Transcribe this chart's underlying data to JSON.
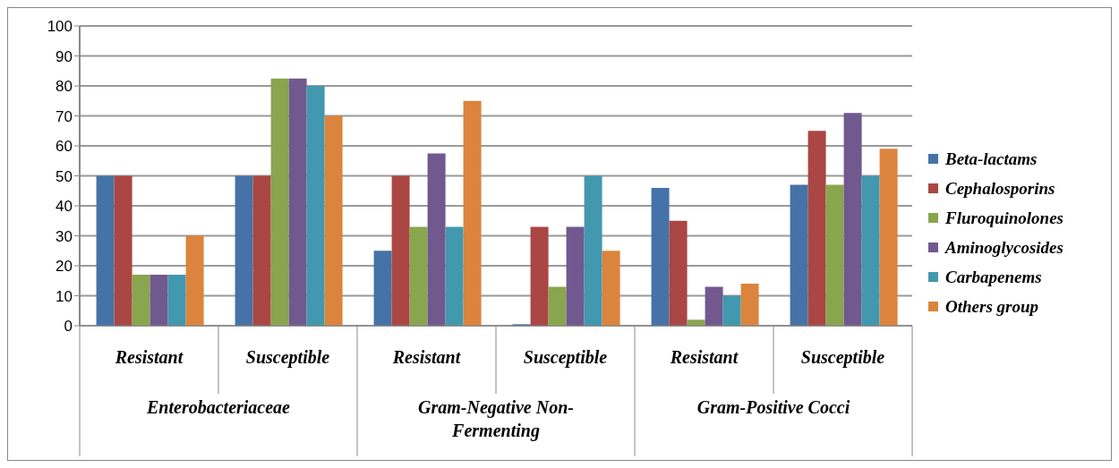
{
  "chart_data": {
    "type": "bar",
    "categories": [
      "Resistant",
      "Susceptible",
      "Resistant",
      "Susceptible",
      "Resistant",
      "Susceptible"
    ],
    "annotations": [
      "Enterobacteriaceae",
      "Gram-Negative Non-Fermenting",
      "Gram-Positive Cocci"
    ],
    "series": [
      {
        "name": "Beta-lactams",
        "color": "#4572a7",
        "values": [
          50,
          50,
          25,
          0.5,
          46,
          47
        ]
      },
      {
        "name": "Cephalosporins",
        "color": "#aa4643",
        "values": [
          50,
          50,
          50,
          33,
          35,
          65
        ]
      },
      {
        "name": "Fluroquinolones",
        "color": "#89a54e",
        "values": [
          17,
          82.5,
          33,
          13,
          2,
          47
        ]
      },
      {
        "name": "Aminoglycosides",
        "color": "#71588f",
        "values": [
          17,
          82.5,
          57.5,
          33,
          13,
          71
        ]
      },
      {
        "name": "Carbapenems",
        "color": "#4198af",
        "values": [
          17,
          80,
          33,
          50,
          10,
          50
        ]
      },
      {
        "name": "Others group",
        "color": "#db843d",
        "values": [
          30,
          70,
          75,
          25,
          14,
          59
        ]
      }
    ],
    "ylim": [
      0,
      100
    ],
    "yticks": [
      0,
      10,
      20,
      30,
      40,
      50,
      60,
      70,
      80,
      90,
      100
    ],
    "grid": "y",
    "legend": "right"
  }
}
